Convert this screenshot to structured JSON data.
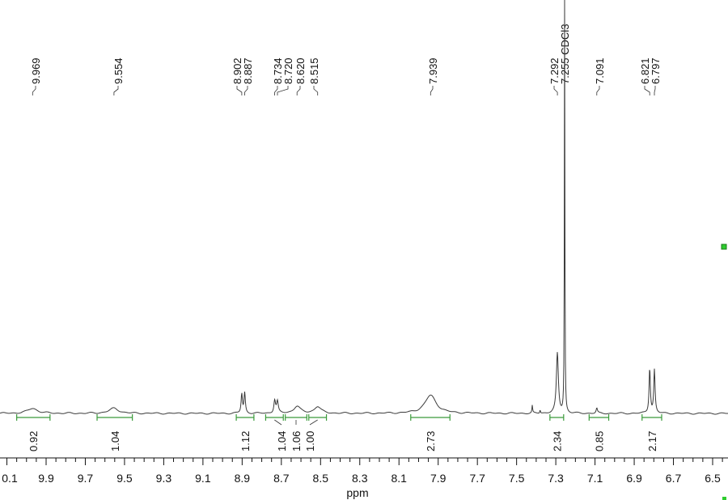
{
  "chart_data": {
    "type": "line",
    "title": "",
    "xlabel": "ppm",
    "ylabel": "",
    "xlim": [
      10.15,
      6.42
    ],
    "x_reversed": true,
    "grid": false,
    "x_ticks": [
      "0.1",
      "9.9",
      "9.7",
      "9.5",
      "9.3",
      "9.1",
      "8.9",
      "8.7",
      "8.5",
      "8.3",
      "8.1",
      "7.9",
      "7.7",
      "7.5",
      "7.3",
      "7.1",
      "6.9",
      "6.7",
      "6.5"
    ],
    "peak_labels": [
      "9.969",
      "9.554",
      "8.902",
      "8.887",
      "8.734",
      "8.720",
      "8.620",
      "8.515",
      "7.939",
      "7.292",
      "7.255 CDCl3",
      "7.091",
      "6.821",
      "6.797"
    ],
    "integrals": [
      {
        "label": "0.92",
        "from": 10.05,
        "to": 9.88
      },
      {
        "label": "1.04",
        "from": 9.64,
        "to": 9.46
      },
      {
        "label": "1.12",
        "from": 8.93,
        "to": 8.84
      },
      {
        "label": "1.04",
        "from": 8.78,
        "to": 8.69
      },
      {
        "label": "1.06",
        "from": 8.68,
        "to": 8.57
      },
      {
        "label": "1.00",
        "from": 8.56,
        "to": 8.47
      },
      {
        "label": "2.73",
        "from": 8.04,
        "to": 7.84
      },
      {
        "label": "2.34",
        "from": 7.33,
        "to": 7.26
      },
      {
        "label": "0.85",
        "from": 7.13,
        "to": 7.03
      },
      {
        "label": "2.17",
        "from": 6.86,
        "to": 6.76
      }
    ],
    "peaks": [
      {
        "x": 9.969,
        "height": 0.012,
        "width": 0.03
      },
      {
        "x": 9.554,
        "height": 0.012,
        "width": 0.03
      },
      {
        "x": 8.902,
        "height": 0.046,
        "width": 0.004
      },
      {
        "x": 8.887,
        "height": 0.048,
        "width": 0.004
      },
      {
        "x": 8.734,
        "height": 0.031,
        "width": 0.005
      },
      {
        "x": 8.72,
        "height": 0.027,
        "width": 0.005
      },
      {
        "x": 8.62,
        "height": 0.017,
        "width": 0.02
      },
      {
        "x": 8.515,
        "height": 0.016,
        "width": 0.02
      },
      {
        "x": 7.939,
        "height": 0.043,
        "width": 0.035
      },
      {
        "x": 7.42,
        "height": 0.018,
        "width": 0.002
      },
      {
        "x": 7.38,
        "height": 0.008,
        "width": 0.002
      },
      {
        "x": 7.292,
        "height": 0.143,
        "width": 0.006
      },
      {
        "x": 7.255,
        "height": 1.0,
        "width": 0.0015
      },
      {
        "x": 7.091,
        "height": 0.012,
        "width": 0.004
      },
      {
        "x": 6.821,
        "height": 0.107,
        "width": 0.004
      },
      {
        "x": 6.797,
        "height": 0.103,
        "width": 0.004
      }
    ]
  },
  "colors": {
    "trace": "#3a3a3a",
    "integral": "#3a9a3a",
    "marker": "#2ecc2e"
  }
}
